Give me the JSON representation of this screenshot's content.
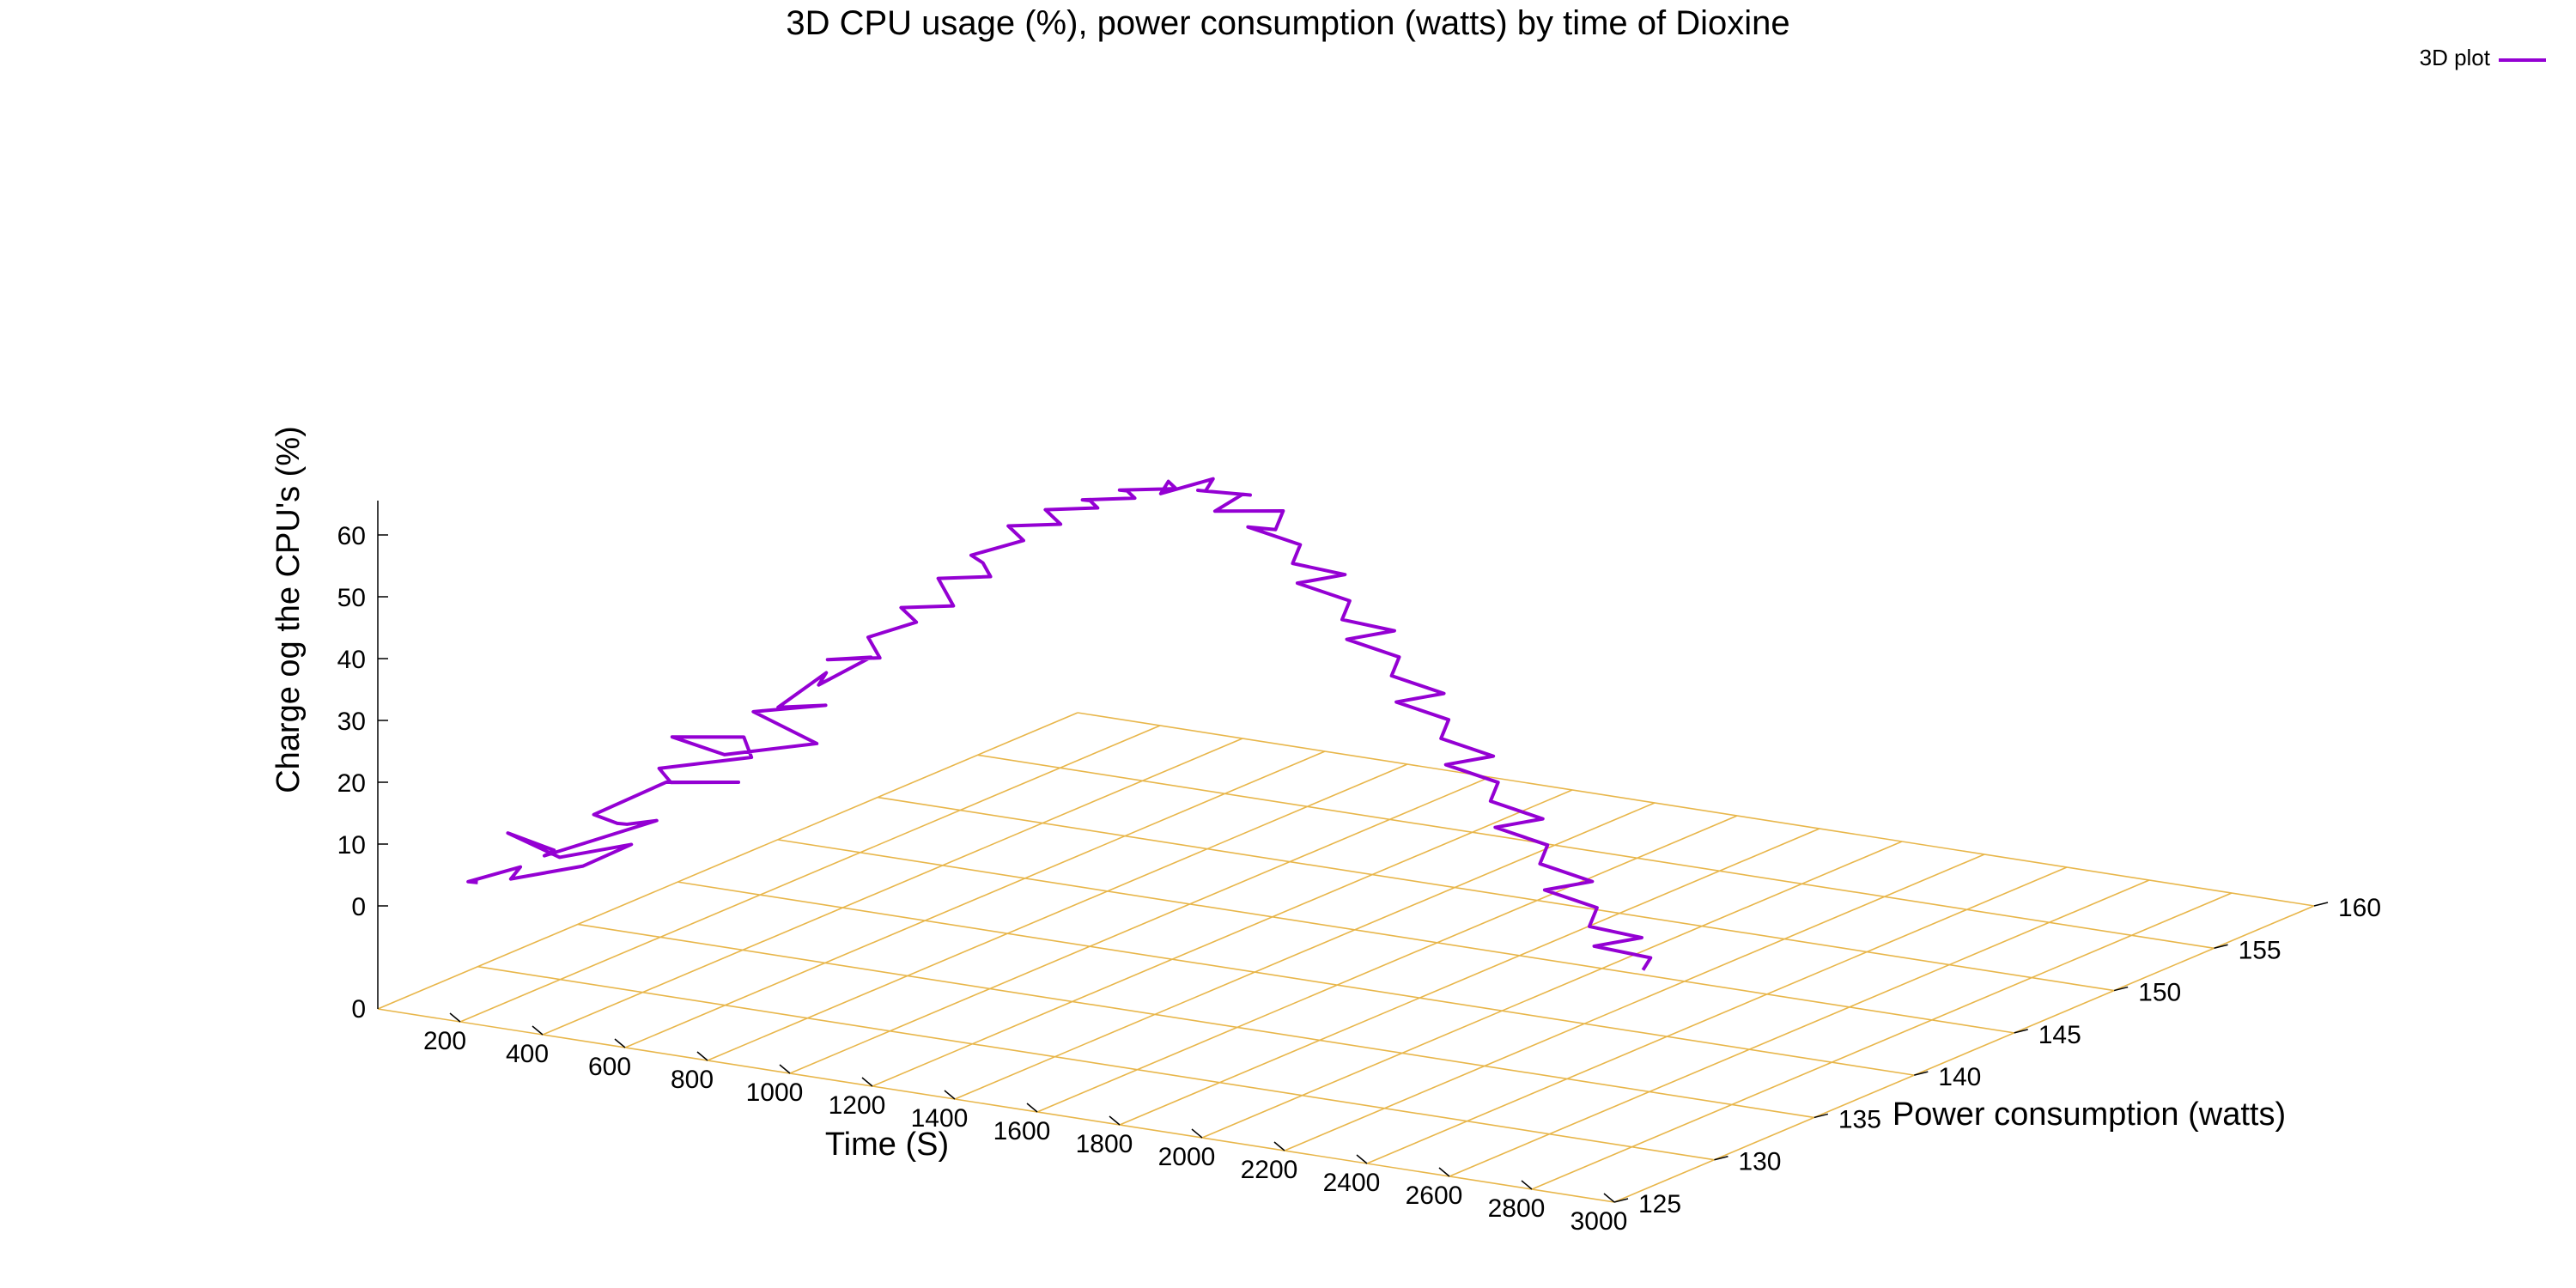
{
  "chart_data": {
    "type": "line",
    "title": "3D CPU usage (%), power consumption (watts) by time of Dioxine",
    "legend": {
      "label": "3D plot",
      "position": "top-right"
    },
    "xlabel": "Time (S)",
    "ylabel": "Power consumption (watts)",
    "zlabel": "Charge og the CPU's (%)",
    "x_ticks": [
      "200",
      "400",
      "600",
      "800",
      "1000",
      "1200",
      "1400",
      "1600",
      "1800",
      "2000",
      "2200",
      "2400",
      "2600",
      "2800",
      "3000"
    ],
    "y_ticks": [
      "125",
      "130",
      "135",
      "140",
      "145",
      "150",
      "155",
      "160"
    ],
    "z_ticks": [
      "0",
      "10",
      "20",
      "30",
      "40",
      "50",
      "60"
    ],
    "origin_tick": "0",
    "xlim": [
      0,
      3000
    ],
    "ylim": [
      125,
      160
    ],
    "zlim": [
      0,
      60
    ],
    "grid": true,
    "series": [
      {
        "name": "3D plot",
        "color": "#9400d3",
        "points": [
          [
            0,
            130,
            0
          ],
          [
            25,
            129,
            1
          ],
          [
            55,
            131,
            2
          ],
          [
            80,
            130,
            1
          ],
          [
            110,
            133,
            1
          ],
          [
            130,
            135,
            3
          ],
          [
            150,
            131,
            4
          ],
          [
            170,
            128,
            10
          ],
          [
            185,
            130,
            6
          ],
          [
            210,
            129,
            6
          ],
          [
            240,
            134,
            8
          ],
          [
            265,
            132,
            9
          ],
          [
            290,
            131,
            10
          ],
          [
            330,
            129,
            13
          ],
          [
            360,
            132,
            16
          ],
          [
            390,
            135,
            14
          ],
          [
            420,
            131,
            17
          ],
          [
            440,
            130,
            20
          ],
          [
            470,
            134,
            19
          ],
          [
            500,
            133,
            23
          ],
          [
            520,
            129,
            26
          ],
          [
            550,
            131,
            22
          ],
          [
            580,
            135,
            21
          ],
          [
            600,
            133,
            25
          ],
          [
            620,
            131,
            29
          ],
          [
            650,
            134,
            28
          ],
          [
            680,
            131,
            30
          ],
          [
            700,
            133,
            34
          ],
          [
            730,
            132,
            33
          ],
          [
            760,
            134,
            36
          ],
          [
            800,
            131,
            38
          ],
          [
            830,
            133,
            37
          ],
          [
            850,
            132,
            41
          ],
          [
            870,
            134,
            42
          ],
          [
            900,
            133,
            44
          ],
          [
            930,
            132,
            46
          ],
          [
            960,
            134,
            45
          ],
          [
            990,
            133,
            48
          ],
          [
            1020,
            132,
            51
          ],
          [
            1050,
            134,
            50
          ],
          [
            1080,
            133,
            53
          ],
          [
            1100,
            132,
            55
          ],
          [
            1130,
            134,
            56
          ],
          [
            1160,
            133,
            58
          ],
          [
            1190,
            132,
            60
          ],
          [
            1220,
            134,
            59
          ],
          [
            1250,
            133,
            61
          ],
          [
            1280,
            132,
            63
          ],
          [
            1310,
            134,
            62
          ],
          [
            1340,
            133,
            64
          ],
          [
            1370,
            132,
            65
          ],
          [
            1400,
            134,
            64
          ],
          [
            1430,
            133,
            66
          ],
          [
            1460,
            132,
            67
          ],
          [
            1500,
            134,
            66
          ],
          [
            1530,
            133,
            68
          ],
          [
            1560,
            132,
            67
          ],
          [
            1590,
            134,
            68
          ],
          [
            1620,
            133,
            67
          ],
          [
            1650,
            132,
            68
          ],
          [
            1680,
            134,
            66
          ],
          [
            1710,
            133,
            67
          ],
          [
            1740,
            131,
            66
          ],
          [
            1760,
            134,
            64
          ],
          [
            1790,
            133,
            62
          ],
          [
            1820,
            131,
            64
          ],
          [
            1850,
            133,
            60
          ],
          [
            1880,
            132,
            58
          ],
          [
            1910,
            134,
            55
          ],
          [
            1940,
            131,
            56
          ],
          [
            1970,
            133,
            52
          ],
          [
            2000,
            132,
            50
          ],
          [
            2030,
            134,
            47
          ],
          [
            2060,
            131,
            48
          ],
          [
            2090,
            133,
            44
          ],
          [
            2120,
            132,
            42
          ],
          [
            2150,
            134,
            38
          ],
          [
            2180,
            131,
            39
          ],
          [
            2210,
            133,
            35
          ],
          [
            2240,
            132,
            33
          ],
          [
            2270,
            134,
            29
          ],
          [
            2300,
            131,
            30
          ],
          [
            2330,
            133,
            26
          ],
          [
            2360,
            132,
            24
          ],
          [
            2390,
            134,
            20
          ],
          [
            2420,
            131,
            21
          ],
          [
            2450,
            133,
            17
          ],
          [
            2480,
            132,
            15
          ],
          [
            2510,
            134,
            11
          ],
          [
            2540,
            131,
            12
          ],
          [
            2570,
            133,
            8
          ],
          [
            2600,
            132,
            6
          ],
          [
            2630,
            134,
            3
          ],
          [
            2660,
            131,
            4
          ],
          [
            2700,
            133,
            1
          ],
          [
            2730,
            132,
            0
          ]
        ]
      }
    ]
  }
}
